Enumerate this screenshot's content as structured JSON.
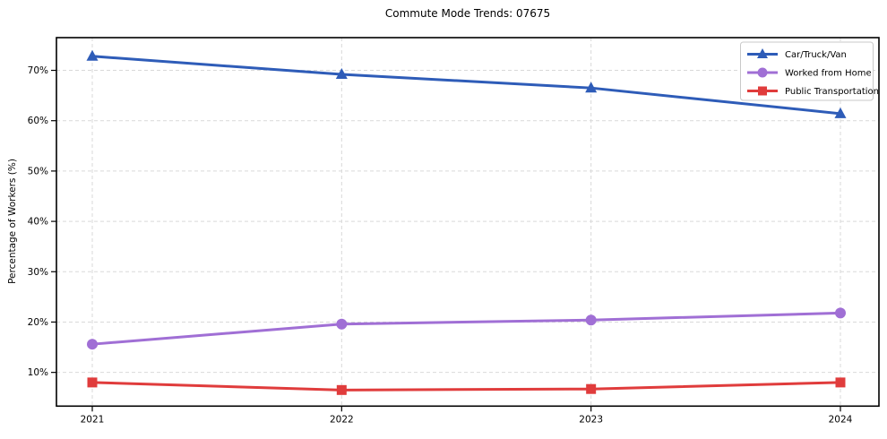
{
  "chart_data": {
    "type": "line",
    "title": "Commute Mode Trends: 07675",
    "xlabel": "",
    "ylabel": "Percentage of Workers (%)",
    "categories": [
      "2021",
      "2022",
      "2023",
      "2024"
    ],
    "series": [
      {
        "name": "Car/Truck/Van",
        "color": "#2e5cb8",
        "marker": "triangle",
        "values": [
          72.8,
          69.2,
          66.5,
          61.4
        ]
      },
      {
        "name": "Worked from Home",
        "color": "#a06fd5",
        "marker": "circle",
        "values": [
          15.6,
          19.6,
          20.4,
          21.8
        ]
      },
      {
        "name": "Public Transportation",
        "color": "#e03c3c",
        "marker": "square",
        "values": [
          8.0,
          6.5,
          6.7,
          8.0
        ]
      }
    ],
    "yticks": [
      "10%",
      "20%",
      "30%",
      "40%",
      "50%",
      "60%",
      "70%"
    ],
    "ytick_values": [
      10,
      20,
      30,
      40,
      50,
      60,
      70
    ],
    "ylim": [
      3.3,
      76.5
    ],
    "grid": true,
    "legend_position": "upper right",
    "colors": {
      "gridline": "#d9d9d9",
      "axis_border": "#000000",
      "tick_text": "#000000",
      "legend_border": "#c9c9c9",
      "legend_background": "#ffffff"
    }
  }
}
